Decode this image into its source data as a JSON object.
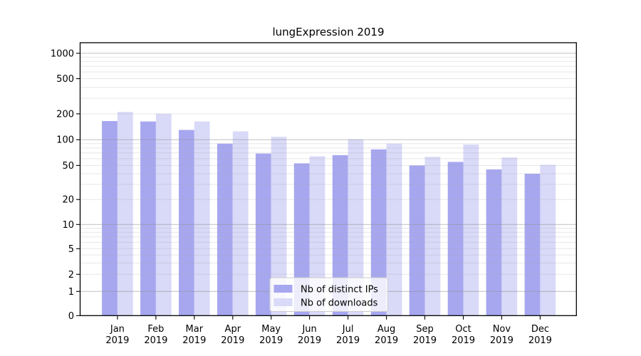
{
  "figure_title": "lungExpression 2019",
  "chart_data": {
    "type": "bar",
    "title": "lungExpression 2019",
    "categories": [
      "Jan 2019",
      "Feb 2019",
      "Mar 2019",
      "Apr 2019",
      "May 2019",
      "Jun 2019",
      "Jul 2019",
      "Aug 2019",
      "Sep 2019",
      "Oct 2019",
      "Nov 2019",
      "Dec 2019"
    ],
    "category_months": [
      "Jan",
      "Feb",
      "Mar",
      "Apr",
      "May",
      "Jun",
      "Jul",
      "Aug",
      "Sep",
      "Oct",
      "Nov",
      "Dec"
    ],
    "category_year": "2019",
    "series": [
      {
        "name": "Nb of distinct IPs",
        "color": "#a7a7f0",
        "values": [
          165,
          163,
          130,
          90,
          69,
          53,
          66,
          77,
          50,
          55,
          45,
          40
        ]
      },
      {
        "name": "Nb of downloads",
        "color": "#d9d9f8",
        "values": [
          210,
          200,
          163,
          125,
          108,
          64,
          101,
          90,
          63,
          88,
          62,
          51
        ]
      }
    ],
    "xlabel": "",
    "ylabel": "",
    "y_axis": {
      "scale": "symlog",
      "tick_values": [
        0,
        1,
        2,
        5,
        10,
        20,
        50,
        100,
        200,
        500,
        1000
      ],
      "tick_labels": [
        "0",
        "1",
        "2",
        "5",
        "10",
        "20",
        "50",
        "100",
        "200",
        "500",
        "1000"
      ],
      "ylim": [
        0,
        1300
      ]
    },
    "grid": {
      "enabled": true,
      "major_values": [
        1,
        10,
        100,
        1000
      ],
      "minor_mantissas": [
        2,
        3,
        4,
        5,
        6,
        7,
        8,
        9
      ]
    },
    "legend": {
      "entries": [
        "Nb of distinct IPs",
        "Nb of downloads"
      ],
      "position": "inside-bottom-center"
    },
    "colors": {
      "distinct_ips_bar": "#a7a7f0",
      "downloads_bar": "#d9d9f8",
      "frame": "#000000",
      "major_grid": "#cdcdcd",
      "minor_grid": "#e9e9e9",
      "legend_border": "#cccccc"
    }
  }
}
